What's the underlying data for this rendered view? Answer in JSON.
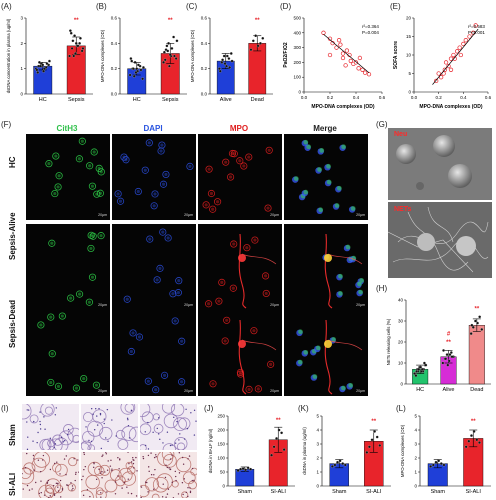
{
  "panels": {
    "A": {
      "label": "(A)",
      "ylabel": "dsDNA concentration in plasma (ug/ml)",
      "categories": [
        "HC",
        "Sepsis"
      ],
      "sig": "**"
    },
    "B": {
      "label": "(B)",
      "ylabel": "MPO-DNA complexes (OD)",
      "categories": [
        "HC",
        "Sepsis"
      ],
      "sig": "**"
    },
    "C": {
      "label": "(C)",
      "ylabel": "MPO-DNA complexes (OD)",
      "categories": [
        "Alive",
        "Dead"
      ],
      "sig": "**"
    },
    "D": {
      "label": "(D)",
      "ylabel": "PaO2/FiO2",
      "xlabel": "MPO-DNA complexes (OD)",
      "r2": "r²=0.364",
      "p": "P=0.004"
    },
    "E": {
      "label": "(E)",
      "ylabel": "SOFA score",
      "xlabel": "MPO-DNA complexes (OD)",
      "r2": "r²=0.583",
      "p": "P<0.001"
    },
    "F": {
      "label": "(F)",
      "columns": [
        "CitH3",
        "DAPI",
        "MPO",
        "Merge"
      ],
      "rows": [
        "HC",
        "Sepsis-Alive",
        "Sepsis-Dead"
      ],
      "scale": "20μm"
    },
    "G": {
      "label": "(G)",
      "top": "Neu",
      "bottom": "NETs"
    },
    "H": {
      "label": "(H)",
      "ylabel": "NETs releasing cells (%)",
      "categories": [
        "HC",
        "Alive",
        "Dead"
      ],
      "sig_alive": "**",
      "sig_alive2": "#",
      "sig_dead": "**"
    },
    "I": {
      "label": "(I)",
      "rows": [
        "Sham",
        "SI-ALI"
      ]
    },
    "J": {
      "label": "(J)",
      "ylabel": "dsDNA in BALF (ng/ml)",
      "categories": [
        "Sham",
        "SI-ALI"
      ],
      "sig": "**"
    },
    "K": {
      "label": "(K)",
      "ylabel": "dsDNA in plasma (ug/ml)",
      "categories": [
        "Sham",
        "SI-ALI"
      ],
      "sig": "**"
    },
    "L": {
      "label": "(L)",
      "ylabel": "MPO-DNA complexes (OD)",
      "categories": [
        "Sham",
        "SI-ALI"
      ],
      "sig": "**"
    }
  },
  "chart_data": [
    {
      "panel": "A",
      "type": "bar",
      "categories": [
        "HC",
        "Sepsis"
      ],
      "values": [
        1.1,
        1.9
      ],
      "errors": [
        0.15,
        0.35
      ],
      "ylim": [
        0,
        3
      ],
      "ticks": [
        0,
        1,
        2,
        3
      ],
      "points": [
        [
          1.0,
          1.1,
          1.2,
          0.9,
          1.05,
          1.15,
          0.95,
          1.25,
          1.1,
          1.0,
          1.2,
          1.3,
          0.85,
          1.1,
          1.15
        ],
        [
          1.5,
          1.8,
          2.3,
          1.9,
          2.0,
          1.7,
          2.5,
          2.1,
          1.6,
          1.9,
          2.2,
          1.8,
          2.4,
          1.5,
          2.0
        ]
      ],
      "colors": [
        "#1f3fd8",
        "#e8242b"
      ]
    },
    {
      "panel": "B",
      "type": "bar",
      "categories": [
        "HC",
        "Sepsis"
      ],
      "values": [
        0.2,
        0.32
      ],
      "errors": [
        0.05,
        0.08
      ],
      "ylim": [
        0,
        0.6
      ],
      "ticks": [
        0.0,
        0.2,
        0.4,
        0.6
      ],
      "points": [
        [
          0.15,
          0.2,
          0.25,
          0.18,
          0.22,
          0.12,
          0.28,
          0.2,
          0.17,
          0.23,
          0.19,
          0.21,
          0.26,
          0.14,
          0.2
        ],
        [
          0.25,
          0.35,
          0.4,
          0.3,
          0.45,
          0.28,
          0.33,
          0.38,
          0.22,
          0.36,
          0.3,
          0.42,
          0.27,
          0.34,
          0.31
        ]
      ],
      "colors": [
        "#1f3fd8",
        "#e8242b"
      ]
    },
    {
      "panel": "C",
      "type": "bar",
      "categories": [
        "Alive",
        "Dead"
      ],
      "values": [
        0.26,
        0.4
      ],
      "errors": [
        0.06,
        0.06
      ],
      "ylim": [
        0,
        0.6
      ],
      "ticks": [
        0.0,
        0.2,
        0.4,
        0.6
      ],
      "points": [
        [
          0.2,
          0.25,
          0.3,
          0.22,
          0.28,
          0.32,
          0.18,
          0.27,
          0.24,
          0.3,
          0.21,
          0.26
        ],
        [
          0.35,
          0.42,
          0.46,
          0.38,
          0.4,
          0.44
        ]
      ],
      "colors": [
        "#1f3fd8",
        "#e8242b"
      ]
    },
    {
      "panel": "D",
      "type": "scatter",
      "xlim": [
        0,
        0.6
      ],
      "ylim": [
        0,
        500
      ],
      "xticks": [
        0.0,
        0.2,
        0.4,
        0.6
      ],
      "yticks": [
        0,
        100,
        200,
        300,
        400,
        500
      ],
      "x": [
        0.15,
        0.2,
        0.22,
        0.25,
        0.28,
        0.3,
        0.3,
        0.33,
        0.35,
        0.36,
        0.38,
        0.4,
        0.42,
        0.45,
        0.47,
        0.5,
        0.2,
        0.27,
        0.32,
        0.43
      ],
      "y": [
        400,
        360,
        330,
        300,
        320,
        260,
        230,
        280,
        250,
        210,
        190,
        200,
        160,
        150,
        130,
        120,
        250,
        350,
        180,
        230
      ],
      "fit": [
        [
          0.15,
          390
        ],
        [
          0.5,
          130
        ]
      ]
    },
    {
      "panel": "E",
      "type": "scatter",
      "xlim": [
        0,
        0.6
      ],
      "ylim": [
        0,
        20
      ],
      "xticks": [
        0.0,
        0.2,
        0.4,
        0.6
      ],
      "yticks": [
        0,
        5,
        10,
        15,
        20
      ],
      "x": [
        0.18,
        0.2,
        0.22,
        0.25,
        0.26,
        0.28,
        0.3,
        0.3,
        0.32,
        0.35,
        0.37,
        0.38,
        0.4,
        0.42,
        0.45,
        0.48,
        0.5,
        0.24,
        0.33
      ],
      "y": [
        3,
        5,
        4,
        6,
        8,
        7,
        9,
        6,
        10,
        11,
        12,
        10,
        13,
        14,
        15,
        16,
        18,
        5,
        9
      ],
      "fit": [
        [
          0.15,
          2
        ],
        [
          0.52,
          17
        ]
      ]
    },
    {
      "panel": "H",
      "type": "bar",
      "categories": [
        "HC",
        "Alive",
        "Dead"
      ],
      "values": [
        7,
        13,
        28
      ],
      "errors": [
        2,
        3,
        3
      ],
      "ylim": [
        0,
        40
      ],
      "ticks": [
        0,
        10,
        20,
        30,
        40
      ],
      "points": [
        [
          5,
          6,
          7,
          8,
          6,
          9,
          5,
          7,
          8,
          6,
          7,
          9,
          4,
          6,
          8,
          7,
          10,
          5,
          6,
          7
        ],
        [
          10,
          12,
          14,
          11,
          15,
          13,
          16,
          12,
          9,
          14,
          13
        ],
        [
          24,
          27,
          30,
          29,
          32,
          26,
          28
        ]
      ],
      "colors": [
        "#21c36c",
        "#d62cd6",
        "#f08a8a"
      ]
    },
    {
      "panel": "J",
      "type": "bar",
      "categories": [
        "Sham",
        "SI-ALI"
      ],
      "values": [
        60,
        165
      ],
      "errors": [
        8,
        45
      ],
      "ylim": [
        0,
        250
      ],
      "ticks": [
        0,
        50,
        100,
        150,
        200,
        250
      ],
      "points": [
        [
          55,
          60,
          62,
          58,
          65,
          60
        ],
        [
          110,
          140,
          170,
          200,
          190,
          130
        ]
      ],
      "colors": [
        "#1f3fd8",
        "#e8242b"
      ]
    },
    {
      "panel": "K",
      "type": "bar",
      "categories": [
        "Sham",
        "SI-ALI"
      ],
      "values": [
        1.6,
        3.2
      ],
      "errors": [
        0.3,
        0.8
      ],
      "ylim": [
        0,
        5
      ],
      "ticks": [
        0,
        1,
        2,
        3,
        4,
        5
      ],
      "points": [
        [
          1.4,
          1.5,
          1.7,
          1.8,
          1.6,
          1.5
        ],
        [
          2.4,
          2.8,
          3.3,
          3.9,
          3.5,
          2.9
        ]
      ],
      "colors": [
        "#1f3fd8",
        "#e8242b"
      ]
    },
    {
      "panel": "L",
      "type": "bar",
      "categories": [
        "Sham",
        "SI-ALI"
      ],
      "values": [
        1.6,
        3.4
      ],
      "errors": [
        0.3,
        0.6
      ],
      "ylim": [
        0,
        5
      ],
      "ticks": [
        0,
        1,
        2,
        3,
        4,
        5
      ],
      "points": [
        [
          1.4,
          1.5,
          1.7,
          1.8,
          1.6,
          1.5
        ],
        [
          2.8,
          3.2,
          3.6,
          3.9,
          3.3,
          3.1
        ]
      ],
      "colors": [
        "#1f3fd8",
        "#e8242b"
      ]
    }
  ]
}
